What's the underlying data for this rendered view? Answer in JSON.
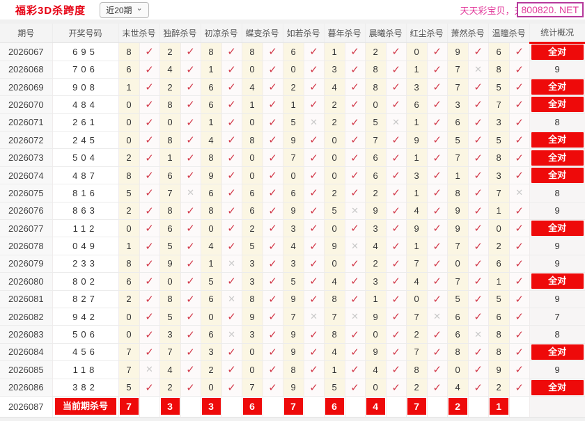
{
  "page": {
    "title": "福彩3D杀跨度",
    "range_value": "近20期",
    "watermark_text": "天天彩宝贝，天",
    "domain_badge": "800820. NET"
  },
  "icons": {
    "chevron": "⌄",
    "check": "✓",
    "cross": "✕"
  },
  "colors": {
    "accent_red": "#ee0a0a",
    "title_red": "#e60012",
    "check_red": "#d2394a",
    "cross_gray": "#c9c9c9",
    "watermark_pink": "#e23a9b",
    "kill_cell_yellow": "#fbf6e3"
  },
  "table": {
    "headers": [
      "期号",
      "开奖号码",
      "末世杀号",
      "独醉杀号",
      "初凉杀号",
      "蝶变杀号",
      "如若杀号",
      "暮年杀号",
      "晨曦杀号",
      "红尘杀号",
      "萧然杀号",
      "温瞳杀号",
      "统计概况"
    ],
    "all_correct_label": "全对",
    "rows": [
      {
        "period": "2026067",
        "numbers": "695",
        "kills": [
          [
            8,
            1
          ],
          [
            2,
            1
          ],
          [
            8,
            1
          ],
          [
            8,
            1
          ],
          [
            6,
            1
          ],
          [
            1,
            1
          ],
          [
            2,
            1
          ],
          [
            0,
            1
          ],
          [
            9,
            1
          ],
          [
            6,
            1
          ]
        ],
        "stat": "全对"
      },
      {
        "period": "2026068",
        "numbers": "706",
        "kills": [
          [
            6,
            1
          ],
          [
            4,
            1
          ],
          [
            1,
            1
          ],
          [
            0,
            1
          ],
          [
            0,
            1
          ],
          [
            3,
            1
          ],
          [
            8,
            1
          ],
          [
            1,
            1
          ],
          [
            7,
            0
          ],
          [
            8,
            1
          ]
        ],
        "stat": "9"
      },
      {
        "period": "2026069",
        "numbers": "908",
        "kills": [
          [
            1,
            1
          ],
          [
            2,
            1
          ],
          [
            6,
            1
          ],
          [
            4,
            1
          ],
          [
            2,
            1
          ],
          [
            4,
            1
          ],
          [
            8,
            1
          ],
          [
            3,
            1
          ],
          [
            7,
            1
          ],
          [
            5,
            1
          ]
        ],
        "stat": "全对"
      },
      {
        "period": "2026070",
        "numbers": "484",
        "kills": [
          [
            0,
            1
          ],
          [
            8,
            1
          ],
          [
            6,
            1
          ],
          [
            1,
            1
          ],
          [
            1,
            1
          ],
          [
            2,
            1
          ],
          [
            0,
            1
          ],
          [
            6,
            1
          ],
          [
            3,
            1
          ],
          [
            7,
            1
          ]
        ],
        "stat": "全对"
      },
      {
        "period": "2026071",
        "numbers": "261",
        "kills": [
          [
            0,
            1
          ],
          [
            0,
            1
          ],
          [
            1,
            1
          ],
          [
            0,
            1
          ],
          [
            5,
            0
          ],
          [
            2,
            1
          ],
          [
            5,
            0
          ],
          [
            1,
            1
          ],
          [
            6,
            1
          ],
          [
            3,
            1
          ]
        ],
        "stat": "8"
      },
      {
        "period": "2026072",
        "numbers": "245",
        "kills": [
          [
            0,
            1
          ],
          [
            8,
            1
          ],
          [
            4,
            1
          ],
          [
            8,
            1
          ],
          [
            9,
            1
          ],
          [
            0,
            1
          ],
          [
            7,
            1
          ],
          [
            9,
            1
          ],
          [
            5,
            1
          ],
          [
            5,
            1
          ]
        ],
        "stat": "全对"
      },
      {
        "period": "2026073",
        "numbers": "504",
        "kills": [
          [
            2,
            1
          ],
          [
            1,
            1
          ],
          [
            8,
            1
          ],
          [
            0,
            1
          ],
          [
            7,
            1
          ],
          [
            0,
            1
          ],
          [
            6,
            1
          ],
          [
            1,
            1
          ],
          [
            7,
            1
          ],
          [
            8,
            1
          ]
        ],
        "stat": "全对"
      },
      {
        "period": "2026074",
        "numbers": "487",
        "kills": [
          [
            8,
            1
          ],
          [
            6,
            1
          ],
          [
            9,
            1
          ],
          [
            0,
            1
          ],
          [
            0,
            1
          ],
          [
            0,
            1
          ],
          [
            6,
            1
          ],
          [
            3,
            1
          ],
          [
            1,
            1
          ],
          [
            3,
            1
          ]
        ],
        "stat": "全对"
      },
      {
        "period": "2026075",
        "numbers": "816",
        "kills": [
          [
            5,
            1
          ],
          [
            7,
            0
          ],
          [
            6,
            1
          ],
          [
            6,
            1
          ],
          [
            6,
            1
          ],
          [
            2,
            1
          ],
          [
            2,
            1
          ],
          [
            1,
            1
          ],
          [
            8,
            1
          ],
          [
            7,
            0
          ]
        ],
        "stat": "8"
      },
      {
        "period": "2026076",
        "numbers": "863",
        "kills": [
          [
            2,
            1
          ],
          [
            8,
            1
          ],
          [
            8,
            1
          ],
          [
            6,
            1
          ],
          [
            9,
            1
          ],
          [
            5,
            0
          ],
          [
            9,
            1
          ],
          [
            4,
            1
          ],
          [
            9,
            1
          ],
          [
            1,
            1
          ]
        ],
        "stat": "9"
      },
      {
        "period": "2026077",
        "numbers": "112",
        "kills": [
          [
            0,
            1
          ],
          [
            6,
            1
          ],
          [
            0,
            1
          ],
          [
            2,
            1
          ],
          [
            3,
            1
          ],
          [
            0,
            1
          ],
          [
            3,
            1
          ],
          [
            9,
            1
          ],
          [
            9,
            1
          ],
          [
            0,
            1
          ]
        ],
        "stat": "全对"
      },
      {
        "period": "2026078",
        "numbers": "049",
        "kills": [
          [
            1,
            1
          ],
          [
            5,
            1
          ],
          [
            4,
            1
          ],
          [
            5,
            1
          ],
          [
            4,
            1
          ],
          [
            9,
            0
          ],
          [
            4,
            1
          ],
          [
            1,
            1
          ],
          [
            7,
            1
          ],
          [
            2,
            1
          ]
        ],
        "stat": "9"
      },
      {
        "period": "2026079",
        "numbers": "233",
        "kills": [
          [
            8,
            1
          ],
          [
            9,
            1
          ],
          [
            1,
            0
          ],
          [
            3,
            1
          ],
          [
            3,
            1
          ],
          [
            0,
            1
          ],
          [
            2,
            1
          ],
          [
            7,
            1
          ],
          [
            0,
            1
          ],
          [
            6,
            1
          ]
        ],
        "stat": "9"
      },
      {
        "period": "2026080",
        "numbers": "802",
        "kills": [
          [
            6,
            1
          ],
          [
            0,
            1
          ],
          [
            5,
            1
          ],
          [
            3,
            1
          ],
          [
            5,
            1
          ],
          [
            4,
            1
          ],
          [
            3,
            1
          ],
          [
            4,
            1
          ],
          [
            7,
            1
          ],
          [
            1,
            1
          ]
        ],
        "stat": "全对"
      },
      {
        "period": "2026081",
        "numbers": "827",
        "kills": [
          [
            2,
            1
          ],
          [
            8,
            1
          ],
          [
            6,
            0
          ],
          [
            8,
            1
          ],
          [
            9,
            1
          ],
          [
            8,
            1
          ],
          [
            1,
            1
          ],
          [
            0,
            1
          ],
          [
            5,
            1
          ],
          [
            5,
            1
          ]
        ],
        "stat": "9"
      },
      {
        "period": "2026082",
        "numbers": "942",
        "kills": [
          [
            0,
            1
          ],
          [
            5,
            1
          ],
          [
            0,
            1
          ],
          [
            9,
            1
          ],
          [
            7,
            0
          ],
          [
            7,
            0
          ],
          [
            9,
            1
          ],
          [
            7,
            0
          ],
          [
            6,
            1
          ],
          [
            6,
            1
          ]
        ],
        "stat": "7"
      },
      {
        "period": "2026083",
        "numbers": "506",
        "kills": [
          [
            0,
            1
          ],
          [
            3,
            1
          ],
          [
            6,
            0
          ],
          [
            3,
            1
          ],
          [
            9,
            1
          ],
          [
            8,
            1
          ],
          [
            0,
            1
          ],
          [
            2,
            1
          ],
          [
            6,
            0
          ],
          [
            8,
            1
          ]
        ],
        "stat": "8"
      },
      {
        "period": "2026084",
        "numbers": "456",
        "kills": [
          [
            7,
            1
          ],
          [
            7,
            1
          ],
          [
            3,
            1
          ],
          [
            0,
            1
          ],
          [
            9,
            1
          ],
          [
            4,
            1
          ],
          [
            9,
            1
          ],
          [
            7,
            1
          ],
          [
            8,
            1
          ],
          [
            8,
            1
          ]
        ],
        "stat": "全对"
      },
      {
        "period": "2026085",
        "numbers": "118",
        "kills": [
          [
            7,
            0
          ],
          [
            4,
            1
          ],
          [
            2,
            1
          ],
          [
            0,
            1
          ],
          [
            8,
            1
          ],
          [
            1,
            1
          ],
          [
            4,
            1
          ],
          [
            8,
            1
          ],
          [
            0,
            1
          ],
          [
            9,
            1
          ]
        ],
        "stat": "9"
      },
      {
        "period": "2026086",
        "numbers": "382",
        "kills": [
          [
            5,
            1
          ],
          [
            2,
            1
          ],
          [
            0,
            1
          ],
          [
            7,
            1
          ],
          [
            9,
            1
          ],
          [
            5,
            1
          ],
          [
            0,
            1
          ],
          [
            2,
            1
          ],
          [
            4,
            1
          ],
          [
            2,
            1
          ]
        ],
        "stat": "全对"
      }
    ],
    "footer": {
      "period": "2026087",
      "label": "当前期杀号",
      "kills": [
        7,
        3,
        3,
        6,
        7,
        6,
        4,
        7,
        2,
        1
      ]
    }
  }
}
